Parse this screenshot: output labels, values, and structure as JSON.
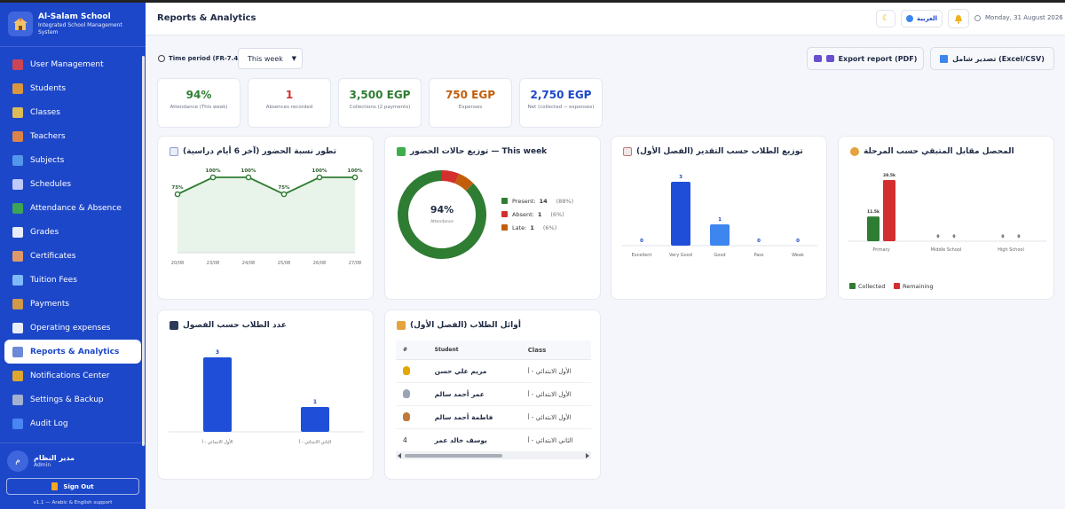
{
  "app": {
    "name": "Al-Salam School",
    "subtitle": "Integrated School Management System",
    "version": "v1.1 — Arabic & English support"
  },
  "colors": {
    "primary": "#1d47c9",
    "green": "#2e7d32",
    "red": "#d32f2f",
    "orange": "#c25e0b",
    "blue_bar": "#1f4fd8",
    "blue_light": "#3d86f0"
  },
  "sidebar": {
    "items": [
      {
        "label": "User Management",
        "icon": "users-icon"
      },
      {
        "label": "Students",
        "icon": "student-icon"
      },
      {
        "label": "Classes",
        "icon": "school-icon"
      },
      {
        "label": "Teachers",
        "icon": "teacher-icon"
      },
      {
        "label": "Subjects",
        "icon": "books-icon"
      },
      {
        "label": "Schedules",
        "icon": "calendar-icon"
      },
      {
        "label": "Attendance & Absence",
        "icon": "check-icon"
      },
      {
        "label": "Grades",
        "icon": "grades-icon"
      },
      {
        "label": "Certificates",
        "icon": "certificate-icon"
      },
      {
        "label": "Tuition Fees",
        "icon": "card-icon"
      },
      {
        "label": "Payments",
        "icon": "money-bag-icon"
      },
      {
        "label": "Operating expenses",
        "icon": "receipt-icon"
      },
      {
        "label": "Reports & Analytics",
        "icon": "chart-icon",
        "active": true
      },
      {
        "label": "Notifications Center",
        "icon": "bell-icon"
      },
      {
        "label": "Settings & Backup",
        "icon": "gear-icon"
      },
      {
        "label": "Audit Log",
        "icon": "shield-icon"
      }
    ],
    "user": {
      "initial": "م",
      "name": "مدير النظام",
      "role": "Admin"
    },
    "signout": "Sign Out"
  },
  "header": {
    "title": "Reports & Analytics",
    "language": "العربية",
    "date": "Monday, 31 August 2026"
  },
  "toolbar": {
    "period_label": "Time period (FR-7.4):",
    "period_value": "This week",
    "export_pdf": "Export report (PDF)",
    "export_excel": "تصدير شامل (Excel/CSV)"
  },
  "kpis": [
    {
      "value": "94%",
      "label": "Attendance (This week)",
      "color": "#2e7d32"
    },
    {
      "value": "1",
      "label": "Absences recorded",
      "color": "#d32f2f"
    },
    {
      "value": "3,500 EGP",
      "label": "Collections (2 payments)",
      "color": "#2e7d32"
    },
    {
      "value": "750 EGP",
      "label": "Expenses",
      "color": "#c25e0b"
    },
    {
      "value": "2,750 EGP",
      "label": "Net (collected − expenses)",
      "color": "#1d47c9"
    }
  ],
  "cards": {
    "attendance_trend_title": "تطور نسبة الحضور (آخر 6 أيام دراسية)",
    "attendance_status_title": "توزيع حالات الحضور — This week",
    "grade_dist_title": "توزيع الطلاب حسب التقدير (الفصل الأول)",
    "collected_title": "المحصل مقابل المتبقي حسب المرحلة",
    "students_class_title": "عدد الطلاب حسب الفصول",
    "top_students_title": "أوائل الطلاب (الفصل الأول)"
  },
  "donut": {
    "center_value": "94%",
    "center_label": "Attendance",
    "items": [
      {
        "label": "Present:",
        "count": "14",
        "pct": "(88%)",
        "color": "#2e7d32",
        "value": 14
      },
      {
        "label": "Absent:",
        "count": "1",
        "pct": "(6%)",
        "color": "#d32f2f",
        "value": 1
      },
      {
        "label": "Late:",
        "count": "1",
        "pct": "(6%)",
        "color": "#c25e0b",
        "value": 1
      }
    ]
  },
  "top_students": {
    "headers": [
      "#",
      "Student",
      "Class"
    ],
    "rows": [
      {
        "rank": "1",
        "medal": "gold-medal-icon",
        "name": "مريم علي حسن",
        "class": "الأول الابتدائي - أ"
      },
      {
        "rank": "2",
        "medal": "silver-medal-icon",
        "name": "عمر أحمد سالم",
        "class": "الأول الابتدائي - أ"
      },
      {
        "rank": "3",
        "medal": "bronze-medal-icon",
        "name": "فاطمة أحمد سالم",
        "class": "الأول الابتدائي - أ"
      },
      {
        "rank": "4",
        "medal": "",
        "name": "يوسف خالد عمر",
        "class": "الثاني الابتدائي - أ"
      }
    ]
  },
  "chart_data": [
    {
      "type": "area",
      "categories": [
        "20/08",
        "23/08",
        "24/08",
        "25/08",
        "26/08",
        "27/08"
      ],
      "values": [
        75,
        100,
        100,
        75,
        100,
        100
      ],
      "value_labels": [
        "75%",
        "100%",
        "100%",
        "75%",
        "100%",
        "100%"
      ],
      "ylim": [
        0,
        100
      ],
      "color": "#2e7d32",
      "grid": false
    },
    {
      "type": "pie",
      "categories": [
        "Present",
        "Absent",
        "Late"
      ],
      "values": [
        14,
        1,
        1
      ]
    },
    {
      "type": "bar",
      "categories": [
        "Excellent",
        "Very Good",
        "Good",
        "Pass",
        "Weak"
      ],
      "values": [
        0,
        3,
        1,
        0,
        0
      ],
      "value_labels": [
        "0",
        "3",
        "1",
        "0",
        "0"
      ],
      "colors": [
        "#1f4fd8",
        "#1f4fd8",
        "#3d86f0",
        "#1f4fd8",
        "#1f4fd8"
      ]
    },
    {
      "type": "bar",
      "categories": [
        "Primary",
        "Middle School",
        "High School"
      ],
      "series": [
        {
          "name": "Collected",
          "values": [
            11.5,
            0,
            0
          ],
          "labels": [
            "11.5k",
            "0",
            "0"
          ],
          "color": "#2e7d32"
        },
        {
          "name": "Remaining",
          "values": [
            28.5,
            0,
            0
          ],
          "labels": [
            "28.5k",
            "0",
            "0"
          ],
          "color": "#d32f2f"
        }
      ],
      "legend": "bottom-left"
    },
    {
      "type": "bar",
      "categories": [
        "الأول الابتدائي - أ",
        "الثاني الابتدائي - أ"
      ],
      "values": [
        3,
        1
      ],
      "value_labels": [
        "3",
        "1"
      ],
      "color": "#1f4fd8"
    }
  ]
}
